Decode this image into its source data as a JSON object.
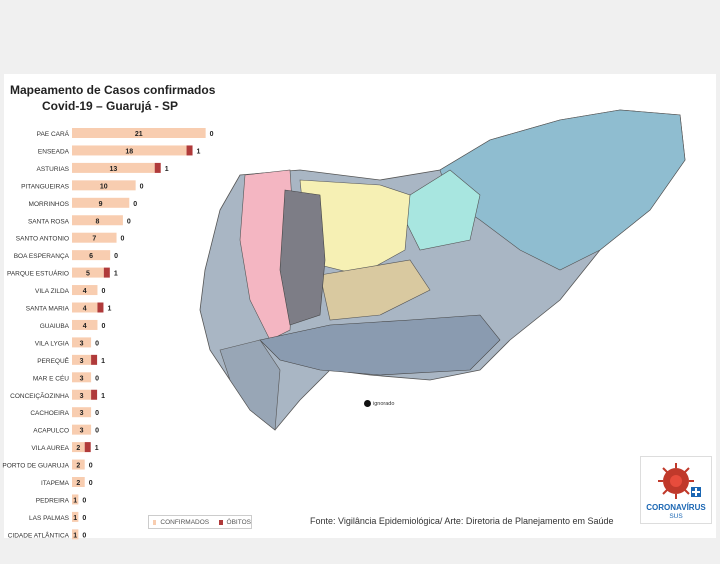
{
  "title_line1": "Mapeamento de Casos confirmados",
  "title_line2": "Covid-19 – Guarujá - SP",
  "legend": {
    "confirmed": "CONFIRMADOS",
    "deaths": "ÓBITOS"
  },
  "source": "Fonte: Vigilância Epidemiológica/ Arte: Diretoria de Planejamento em Saúde",
  "map_marker_label": "ignorado",
  "logo": {
    "line1": "CORONAVÍRUS",
    "line2": "SUS"
  },
  "colors": {
    "confirmed": "#f8cdb0",
    "deaths": "#b03a3a"
  },
  "chart_data": {
    "type": "bar",
    "orientation": "horizontal",
    "categories": [
      "PAE CARÁ",
      "ENSEADA",
      "ASTURIAS",
      "PITANGUEIRAS",
      "MORRINHOS",
      "SANTA ROSA",
      "SANTO ANTONIO",
      "BOA ESPERANÇA",
      "PARQUE ESTUÁRIO",
      "VILA ZILDA",
      "SANTA MARIA",
      "GUAIUBA",
      "VILA LYGIA",
      "PEREQUÊ",
      "MAR E CÉU",
      "CONCEIÇÃOZINHA",
      "CACHOEIRA",
      "ACAPULCO",
      "VILA AUREA",
      "PORTO DE GUARUJA",
      "ITAPEMA",
      "PEDREIRA",
      "LAS PALMAS",
      "CIDADE ATLÂNTICA"
    ],
    "series": [
      {
        "name": "CONFIRMADOS",
        "values": [
          21,
          18,
          13,
          10,
          9,
          8,
          7,
          6,
          5,
          4,
          4,
          4,
          3,
          3,
          3,
          3,
          3,
          3,
          2,
          2,
          2,
          1,
          1,
          1
        ]
      },
      {
        "name": "ÓBITOS",
        "values": [
          0,
          1,
          1,
          0,
          0,
          0,
          0,
          0,
          1,
          0,
          1,
          0,
          0,
          1,
          0,
          1,
          0,
          0,
          1,
          0,
          0,
          0,
          0,
          0
        ]
      }
    ],
    "xlim": [
      0,
      22
    ],
    "grid": false,
    "legend_position": "bottom"
  }
}
